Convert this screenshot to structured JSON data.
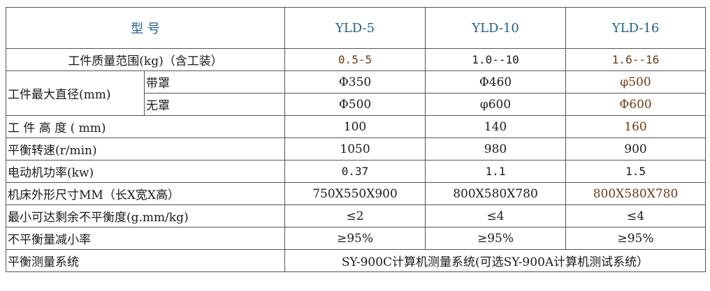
{
  "header": {
    "model_label": "型 号",
    "models": [
      "YLD-5",
      "YLD-10",
      "YLD-16"
    ]
  },
  "rows": {
    "workpiece_mass": {
      "label": "工件质量范围(kg)（含工装）",
      "values": [
        "0.5-5",
        "1.0--10",
        "1.6--16"
      ]
    },
    "max_diameter": {
      "label": "工件最大直径(mm)",
      "with_cover": {
        "label": "带罩",
        "values": [
          "Φ350",
          "Φ460",
          "φ500"
        ]
      },
      "without_cover": {
        "label": "无罩",
        "values": [
          "Φ500",
          "φ600",
          "Φ600"
        ]
      }
    },
    "height": {
      "label": "工 件 高 度 ( mm)",
      "values": [
        "100",
        "140",
        "160"
      ]
    },
    "speed": {
      "label": "平衡转速(r/min)",
      "values": [
        "1050",
        "980",
        "900"
      ]
    },
    "motor_power": {
      "label": "电动机功率(kw)",
      "values": [
        "0.37",
        "1.1",
        "1.5"
      ]
    },
    "dimensions": {
      "label": "机床外形尺寸MM（长X宽X高）",
      "values": [
        "750X550X900",
        "800X580X780",
        "800X580X780"
      ]
    },
    "min_residual": {
      "label": "最小可达剩余不平衡度(g.mm/kg)",
      "values": [
        "≤2",
        "≤4",
        "≤4"
      ]
    },
    "reduction_rate": {
      "label": "不平衡量减小率",
      "values": [
        "≥95%",
        "≥95%",
        "≥95%"
      ]
    },
    "measurement_system": {
      "label": "平衡测量系统",
      "value": "SY-900C计算机测量系统(可选SY-900A计算机测试系统）"
    }
  }
}
